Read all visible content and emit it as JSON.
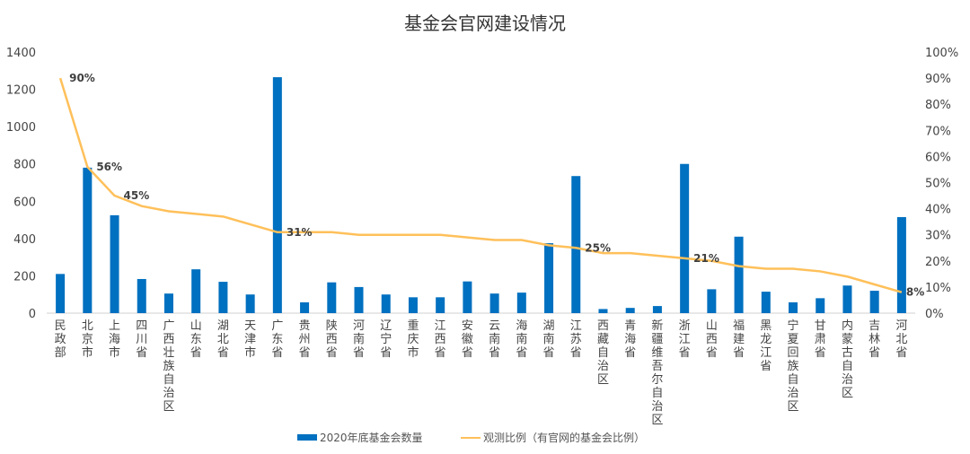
{
  "chart_data": {
    "type": "bar+line",
    "title": "基金会官网建设情况",
    "categories": [
      "民政部",
      "北京市",
      "上海市",
      "四川省",
      "广西壮族自治区",
      "山东省",
      "湖北省",
      "天津市",
      "广东省",
      "贵州省",
      "陕西省",
      "河南省",
      "辽宁省",
      "重庆市",
      "江西省",
      "安徽省",
      "云南省",
      "海南省",
      "湖南省",
      "江苏省",
      "西藏自治区",
      "青海省",
      "新疆维吾尔自治区",
      "浙江省",
      "山西省",
      "福建省",
      "黑龙江省",
      "宁夏回族自治区",
      "甘肃省",
      "内蒙古自治区",
      "吉林省",
      "河北省"
    ],
    "series": [
      {
        "name": "2020年底基金会数量",
        "type": "bar",
        "axis": "left",
        "color": "#0070C0",
        "values": [
          210,
          780,
          525,
          183,
          105,
          235,
          168,
          100,
          1265,
          58,
          165,
          140,
          100,
          85,
          85,
          170,
          105,
          110,
          375,
          735,
          22,
          28,
          38,
          800,
          128,
          410,
          115,
          58,
          80,
          148,
          120,
          515
        ]
      },
      {
        "name": "观测比例（有官网的基金会比例）",
        "type": "line",
        "axis": "right",
        "color": "#FFC05A",
        "values": [
          90,
          56,
          45,
          41,
          39,
          38,
          37,
          34,
          31,
          31,
          31,
          30,
          30,
          30,
          30,
          29,
          28,
          28,
          26,
          25,
          23,
          23,
          22,
          21,
          20,
          18,
          17,
          17,
          16,
          14,
          11,
          8
        ]
      }
    ],
    "data_labels": [
      {
        "index": 0,
        "text": "90%"
      },
      {
        "index": 1,
        "text": "56%"
      },
      {
        "index": 2,
        "text": "45%"
      },
      {
        "index": 8,
        "text": "31%"
      },
      {
        "index": 19,
        "text": "25%"
      },
      {
        "index": 23,
        "text": "21%"
      },
      {
        "index": 31,
        "text": "8%"
      }
    ],
    "y_left": {
      "ylim": [
        0,
        1400
      ],
      "ticks": [
        "0",
        "200",
        "400",
        "600",
        "800",
        "1000",
        "1200",
        "1400"
      ]
    },
    "y_right": {
      "ylim": [
        0,
        100
      ],
      "ticks": [
        "0%",
        "10%",
        "20%",
        "30%",
        "40%",
        "50%",
        "60%",
        "70%",
        "80%",
        "90%",
        "100%"
      ]
    },
    "grid": false,
    "legend": "bottom"
  }
}
